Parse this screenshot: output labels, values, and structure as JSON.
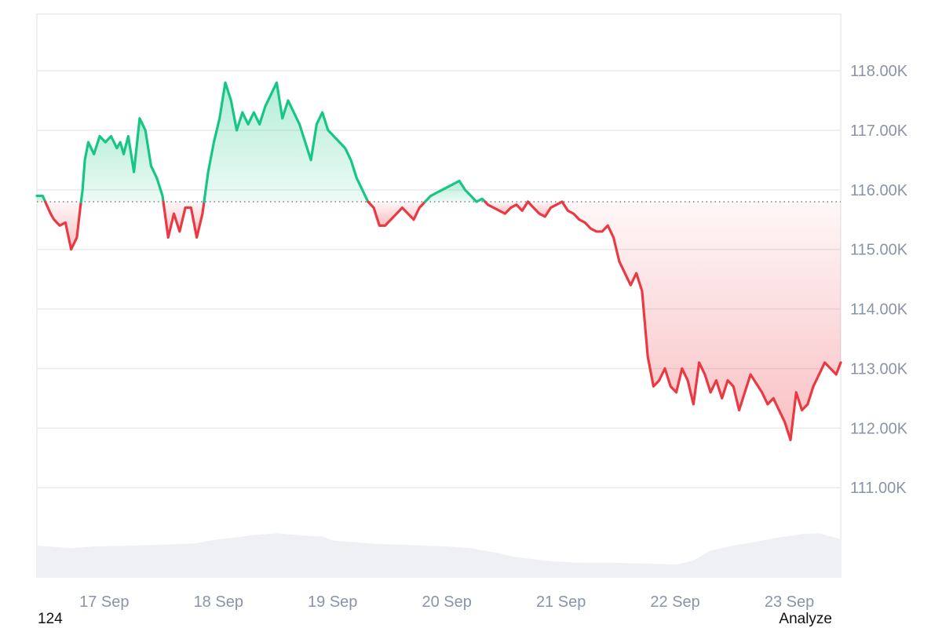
{
  "footer": {
    "left_text": "124",
    "right_label": "Analyze"
  },
  "colors": {
    "up": "#16c784",
    "down": "#ea3943",
    "grid": "#e8eaed",
    "baseline": "#7a7f87",
    "volume": "#eef0f3",
    "tick": "#8a94a6"
  },
  "chart_data": {
    "type": "area",
    "title": "",
    "xlabel": "",
    "ylabel": "",
    "ylim": [
      109500,
      118950
    ],
    "xlim": [
      0,
      7.04
    ],
    "baseline": 115800,
    "y_ticks": [
      118000,
      117000,
      116000,
      115000,
      114000,
      113000,
      112000,
      111000
    ],
    "y_tick_labels": [
      "118.00K",
      "117.00K",
      "116.00K",
      "115.00K",
      "114.00K",
      "113.00K",
      "112.00K",
      "111.00K"
    ],
    "x_ticks": [
      0.59,
      1.59,
      2.59,
      3.59,
      4.59,
      5.59,
      6.59
    ],
    "x_tick_labels": [
      "17 Sep",
      "18 Sep",
      "19 Sep",
      "20 Sep",
      "21 Sep",
      "22 Sep",
      "23 Sep"
    ],
    "grid": true,
    "series": [
      {
        "x": [
          0,
          0.05,
          0.12,
          0.15,
          0.2,
          0.25,
          0.3,
          0.35,
          0.38,
          0.4,
          0.42,
          0.45,
          0.5,
          0.55,
          0.6,
          0.65,
          0.7,
          0.73,
          0.76,
          0.8,
          0.85,
          0.9,
          0.95,
          1.0,
          1.05,
          1.1,
          1.15,
          1.2,
          1.25,
          1.3,
          1.35,
          1.4,
          1.45,
          1.5,
          1.55,
          1.6,
          1.65,
          1.7,
          1.75,
          1.8,
          1.85,
          1.9,
          1.95,
          2.0,
          2.05,
          2.1,
          2.15,
          2.2,
          2.25,
          2.3,
          2.35,
          2.4,
          2.45,
          2.5,
          2.55,
          2.6,
          2.65,
          2.7,
          2.75,
          2.8,
          2.85,
          2.9,
          2.95,
          3.0,
          3.05,
          3.1,
          3.15,
          3.2,
          3.25,
          3.3,
          3.35,
          3.4,
          3.45,
          3.5,
          3.55,
          3.6,
          3.65,
          3.7,
          3.75,
          3.8,
          3.85,
          3.9,
          3.95,
          4.0,
          4.05,
          4.1,
          4.15,
          4.2,
          4.25,
          4.3,
          4.35,
          4.4,
          4.45,
          4.5,
          4.55,
          4.6,
          4.65,
          4.7,
          4.75,
          4.8,
          4.85,
          4.9,
          4.95,
          5.0,
          5.05,
          5.1,
          5.15,
          5.2,
          5.25,
          5.3,
          5.35,
          5.4,
          5.45,
          5.5,
          5.55,
          5.6,
          5.65,
          5.7,
          5.75,
          5.8,
          5.85,
          5.9,
          5.95,
          6.0,
          6.05,
          6.1,
          6.15,
          6.2,
          6.25,
          6.3,
          6.35,
          6.4,
          6.45,
          6.5,
          6.55,
          6.6,
          6.65,
          6.7,
          6.75,
          6.8,
          6.85,
          6.9,
          6.95,
          7.0,
          7.04
        ],
        "y": [
          115900,
          115900,
          115600,
          115500,
          115400,
          115450,
          115000,
          115200,
          115700,
          116000,
          116500,
          116800,
          116600,
          116900,
          116800,
          116900,
          116700,
          116800,
          116600,
          116900,
          116300,
          117200,
          117000,
          116400,
          116200,
          115900,
          115200,
          115600,
          115300,
          115700,
          115700,
          115200,
          115600,
          116300,
          116800,
          117200,
          117800,
          117500,
          117000,
          117300,
          117100,
          117300,
          117100,
          117400,
          117600,
          117800,
          117200,
          117500,
          117300,
          117100,
          116800,
          116500,
          117100,
          117300,
          117000,
          116900,
          116800,
          116700,
          116500,
          116200,
          116000,
          115800,
          115700,
          115400,
          115400,
          115500,
          115600,
          115700,
          115600,
          115500,
          115700,
          115800,
          115900,
          115950,
          116000,
          116050,
          116100,
          116150,
          116000,
          115900,
          115800,
          115850,
          115750,
          115700,
          115650,
          115600,
          115700,
          115750,
          115650,
          115800,
          115700,
          115600,
          115550,
          115700,
          115750,
          115800,
          115650,
          115600,
          115500,
          115450,
          115350,
          115300,
          115300,
          115400,
          115200,
          114800,
          114600,
          114400,
          114600,
          114300,
          113200,
          112700,
          112800,
          113000,
          112700,
          112600,
          113000,
          112800,
          112400,
          113100,
          112900,
          112600,
          112800,
          112500,
          112800,
          112700,
          112300,
          112600,
          112900,
          112750,
          112600,
          112400,
          112500,
          112300,
          112100,
          111800,
          112600,
          112300,
          112400,
          112700,
          112900,
          113100,
          113000,
          112900,
          113100
        ]
      }
    ],
    "volume": {
      "x": [
        0,
        0.3,
        0.5,
        0.8,
        1.1,
        1.4,
        1.55,
        1.75,
        1.9,
        2.1,
        2.35,
        2.5,
        2.6,
        2.8,
        3.0,
        3.2,
        3.4,
        3.6,
        3.8,
        4.0,
        4.2,
        4.5,
        4.8,
        5.1,
        5.4,
        5.6,
        5.75,
        5.9,
        6.1,
        6.3,
        6.5,
        6.7,
        6.85,
        7.04
      ],
      "y": [
        0.38,
        0.35,
        0.37,
        0.38,
        0.39,
        0.41,
        0.45,
        0.48,
        0.51,
        0.53,
        0.5,
        0.49,
        0.44,
        0.42,
        0.4,
        0.39,
        0.38,
        0.37,
        0.35,
        0.3,
        0.24,
        0.19,
        0.17,
        0.17,
        0.16,
        0.15,
        0.2,
        0.32,
        0.38,
        0.43,
        0.48,
        0.52,
        0.53,
        0.46
      ]
    }
  }
}
